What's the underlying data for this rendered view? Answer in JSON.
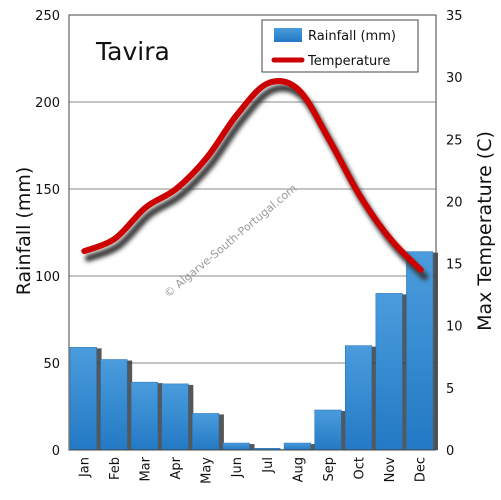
{
  "chart_data": {
    "type": "bar",
    "title": "Tavira",
    "categories": [
      "Jan",
      "Feb",
      "Mar",
      "Apr",
      "May",
      "Jun",
      "Jul",
      "Aug",
      "Sep",
      "Oct",
      "Nov",
      "Dec"
    ],
    "series": [
      {
        "name": "Rainfall (mm)",
        "type": "bar",
        "axis": "left",
        "values": [
          59,
          52,
          39,
          38,
          21,
          4,
          1,
          4,
          23,
          60,
          90,
          114
        ]
      },
      {
        "name": "Temperature",
        "type": "line",
        "axis": "right",
        "values": [
          16,
          17,
          19.5,
          21,
          23.5,
          27,
          29.5,
          29,
          25,
          20.5,
          17,
          14.5
        ]
      }
    ],
    "ylabel": "Rainfall (mm)",
    "y2label": "Max Temperature (C)",
    "ylim": [
      0,
      250
    ],
    "y2lim": [
      0,
      35
    ],
    "yticks": [
      "0",
      "50",
      "100",
      "150",
      "200",
      "250"
    ],
    "y2ticks": [
      "0",
      "5",
      "10",
      "15",
      "20",
      "25",
      "30",
      "35"
    ],
    "grid": true,
    "legend_position": "top-right",
    "watermark": "© Algarve-South-Portugal.com",
    "colors": {
      "bar": "#3a8ed0",
      "bar_dark": "#1f6fb8",
      "line": "#cc0000",
      "shadow": "#3a3a3a",
      "grid": "#888888"
    }
  }
}
